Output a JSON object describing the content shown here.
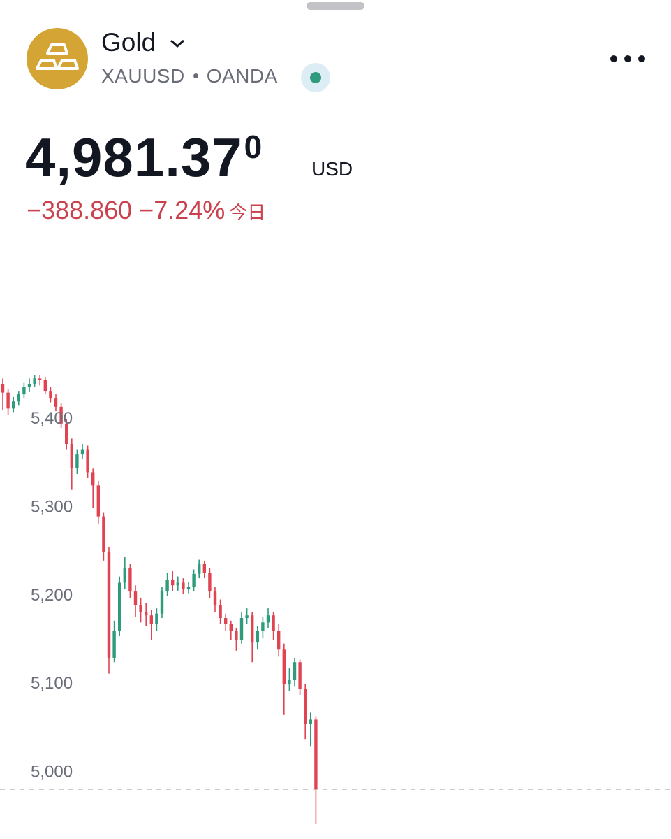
{
  "header": {
    "title": "Gold",
    "symbol": "XAUUSD",
    "exchange": "OANDA",
    "price": "4,981.37",
    "price_superscript": "0",
    "currency": "USD",
    "change": "−388.860",
    "change_percent": "−7.24%",
    "period": "今日"
  },
  "chart_data": {
    "type": "candlestick",
    "up_color": "#2e9b7c",
    "down_color": "#e04452",
    "ylim": [
      4933,
      5455
    ],
    "yticks": [
      {
        "value": 5000,
        "label": "5,000"
      },
      {
        "value": 5100,
        "label": "5,100"
      },
      {
        "value": 5200,
        "label": "5,200"
      },
      {
        "value": 5300,
        "label": "5,300"
      },
      {
        "value": 5400,
        "label": "5,400"
      }
    ],
    "open": [
      5440,
      5430,
      5412,
      5420,
      5428,
      5436,
      5440,
      5446,
      5444,
      5432,
      5424,
      5414,
      5395,
      5372,
      5345,
      5360,
      5366,
      5340,
      5325,
      5290,
      5250,
      5130,
      5160,
      5215,
      5232,
      5205,
      5190,
      5182,
      5178,
      5168,
      5180,
      5205,
      5218,
      5212,
      5215,
      5208,
      5210,
      5225,
      5236,
      5226,
      5205,
      5190,
      5175,
      5168,
      5160,
      5150,
      5175,
      5178,
      5148,
      5160,
      5170,
      5178,
      5160,
      5140,
      5100,
      5105,
      5125,
      5095,
      5055,
      5060
    ],
    "high": [
      5446,
      5434,
      5425,
      5432,
      5441,
      5446,
      5450,
      5450,
      5448,
      5436,
      5428,
      5418,
      5400,
      5378,
      5366,
      5372,
      5370,
      5344,
      5330,
      5294,
      5255,
      5172,
      5222,
      5244,
      5236,
      5212,
      5198,
      5192,
      5184,
      5186,
      5210,
      5226,
      5228,
      5222,
      5220,
      5216,
      5230,
      5241,
      5240,
      5232,
      5210,
      5196,
      5180,
      5172,
      5164,
      5182,
      5186,
      5182,
      5166,
      5176,
      5186,
      5182,
      5168,
      5146,
      5118,
      5130,
      5128,
      5100,
      5068,
      5064
    ],
    "low": [
      5410,
      5405,
      5408,
      5416,
      5424,
      5431,
      5436,
      5438,
      5428,
      5419,
      5409,
      5390,
      5366,
      5320,
      5338,
      5355,
      5334,
      5300,
      5282,
      5240,
      5112,
      5125,
      5155,
      5208,
      5198,
      5176,
      5170,
      5166,
      5150,
      5160,
      5175,
      5200,
      5205,
      5206,
      5202,
      5203,
      5205,
      5220,
      5220,
      5198,
      5182,
      5168,
      5160,
      5150,
      5138,
      5146,
      5168,
      5125,
      5140,
      5152,
      5164,
      5150,
      5132,
      5066,
      5092,
      5098,
      5088,
      5038,
      5030,
      4942
    ],
    "close": [
      5430,
      5412,
      5420,
      5428,
      5436,
      5440,
      5446,
      5444,
      5432,
      5424,
      5414,
      5395,
      5372,
      5345,
      5360,
      5366,
      5340,
      5325,
      5290,
      5250,
      5130,
      5160,
      5215,
      5232,
      5205,
      5190,
      5182,
      5178,
      5168,
      5180,
      5205,
      5218,
      5212,
      5215,
      5208,
      5210,
      5225,
      5236,
      5226,
      5205,
      5190,
      5175,
      5168,
      5160,
      5150,
      5175,
      5178,
      5148,
      5160,
      5170,
      5178,
      5160,
      5140,
      5100,
      5105,
      5125,
      5095,
      5055,
      5060,
      4981.37
    ]
  }
}
